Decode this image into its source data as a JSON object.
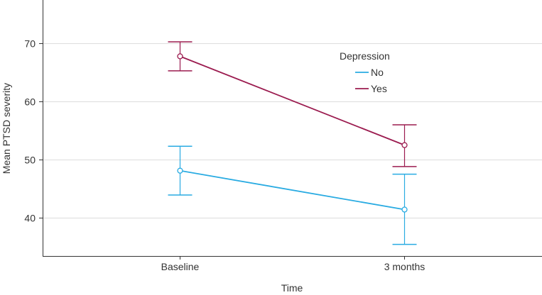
{
  "chart_data": {
    "type": "line",
    "title": "",
    "xlabel": "Time",
    "ylabel": "Mean PTSD severity",
    "categories": [
      "Baseline",
      "3 months"
    ],
    "yticks": [
      40,
      50,
      60,
      70
    ],
    "ylim": [
      33.4,
      77.5
    ],
    "grid": "horizontal",
    "legend": {
      "title": "Depression",
      "placement": "top-center"
    },
    "series": [
      {
        "name": "No",
        "color": "#29abe2",
        "values": [
          48.1,
          41.4
        ],
        "lower": [
          43.9,
          35.4
        ],
        "upper": [
          52.3,
          47.5
        ]
      },
      {
        "name": "Yes",
        "color": "#9b1b4f",
        "values": [
          67.8,
          52.5
        ],
        "lower": [
          65.3,
          48.8
        ],
        "upper": [
          70.3,
          56.0
        ]
      }
    ]
  }
}
